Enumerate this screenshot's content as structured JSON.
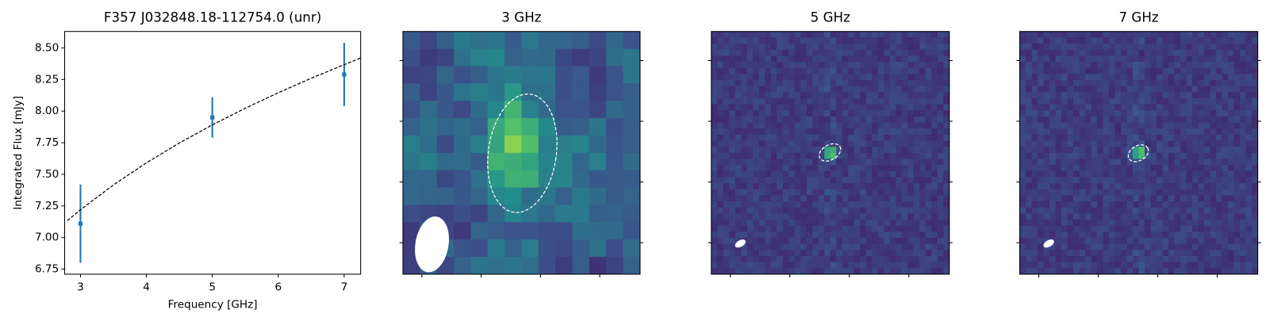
{
  "chart_data": [
    {
      "type": "errorbar",
      "title": "F357 J032848.18-112754.0 (unr)",
      "xlabel": "Frequency [GHz]",
      "ylabel": "Integrated Flux [mJy]",
      "xlim": [
        2.76,
        7.25
      ],
      "ylim": [
        6.71,
        8.63
      ],
      "xticks": [
        3,
        4,
        5,
        6,
        7
      ],
      "yticks": [
        {
          "value": 6.75,
          "label": "6.75"
        },
        {
          "value": 7.0,
          "label": "7.00"
        },
        {
          "value": 7.25,
          "label": "7.25"
        },
        {
          "value": 7.5,
          "label": "7.50"
        },
        {
          "value": 7.75,
          "label": "7.75"
        },
        {
          "value": 8.0,
          "label": "8.00"
        },
        {
          "value": 8.25,
          "label": "8.25"
        },
        {
          "value": 8.5,
          "label": "8.50"
        }
      ],
      "series": [
        {
          "kind": "points",
          "color": "#1f77b4",
          "x": [
            3,
            5,
            7
          ],
          "values": [
            7.11,
            7.95,
            8.29
          ],
          "errors": [
            0.31,
            0.16,
            0.25
          ]
        },
        {
          "kind": "fit",
          "color": "#000000",
          "dashed": true,
          "x": [
            2.8,
            3,
            3.5,
            4,
            4.5,
            5,
            5.5,
            6,
            6.5,
            7,
            7.25
          ],
          "values": [
            7.134,
            7.22,
            7.416,
            7.591,
            7.748,
            7.891,
            8.023,
            8.145,
            8.26,
            8.367,
            8.42
          ]
        }
      ]
    },
    {
      "type": "image",
      "title": "3 GHz"
    },
    {
      "type": "image",
      "title": "5 GHz"
    },
    {
      "type": "image",
      "title": "7 GHz"
    }
  ]
}
